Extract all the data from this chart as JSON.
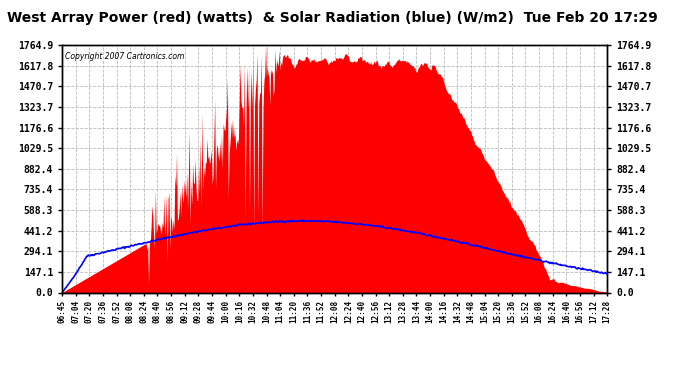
{
  "title": "West Array Power (red) (watts)  & Solar Radiation (blue) (W/m2)  Tue Feb 20 17:29",
  "copyright": "Copyright 2007 Cartronics.com",
  "y_ticks": [
    0.0,
    147.1,
    294.1,
    441.2,
    588.3,
    735.4,
    882.4,
    1029.5,
    1176.6,
    1323.7,
    1470.7,
    1617.8,
    1764.9
  ],
  "y_max": 1764.9,
  "y_min": 0.0,
  "x_tick_labels": [
    "06:45",
    "07:04",
    "07:20",
    "07:36",
    "07:52",
    "08:08",
    "08:24",
    "08:40",
    "08:56",
    "09:12",
    "09:28",
    "09:44",
    "10:00",
    "10:16",
    "10:32",
    "10:48",
    "11:04",
    "11:20",
    "11:36",
    "11:52",
    "12:08",
    "12:24",
    "12:40",
    "12:56",
    "13:12",
    "13:28",
    "13:44",
    "14:00",
    "14:16",
    "14:32",
    "14:48",
    "15:04",
    "15:20",
    "15:36",
    "15:52",
    "16:08",
    "16:24",
    "16:40",
    "16:56",
    "17:12",
    "17:28"
  ],
  "red_area_color": "#FF0000",
  "blue_line_color": "#0000FF",
  "background_color": "#FFFFFF",
  "grid_color": "#BBBBBB",
  "title_fontsize": 10,
  "title_color": "#000000"
}
